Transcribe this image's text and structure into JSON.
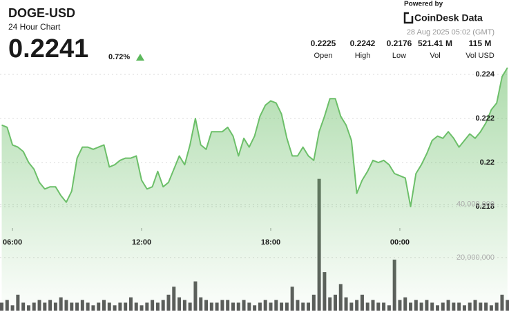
{
  "header": {
    "powered": "Powered by",
    "brand": "CoinDesk Data",
    "timestamp": "28 Aug 2025 05:02 (GMT)",
    "price": "0.2241",
    "change": "0.72%",
    "stats": [
      {
        "value": "0.2225",
        "label": "Open"
      },
      {
        "value": "0.2242",
        "label": "High"
      },
      {
        "value": "0.2176",
        "label": "Low"
      },
      {
        "value": "521.41 M",
        "label": "Vol"
      },
      {
        "value": "115 M",
        "label": "Vol USD"
      }
    ]
  },
  "chart_data": {
    "type": "line",
    "title": "DOGE-USD",
    "subtitle": "24 Hour Chart",
    "categories": [
      null,
      null,
      "06:00",
      null,
      null,
      null,
      null,
      null,
      null,
      null,
      null,
      null,
      null,
      null,
      null,
      null,
      null,
      null,
      null,
      null,
      null,
      null,
      null,
      null,
      null,
      null,
      "12:00",
      null,
      null,
      null,
      null,
      null,
      null,
      null,
      null,
      null,
      null,
      null,
      null,
      null,
      null,
      null,
      null,
      null,
      null,
      null,
      null,
      null,
      null,
      null,
      "18:00",
      null,
      null,
      null,
      null,
      null,
      null,
      null,
      null,
      null,
      null,
      null,
      null,
      null,
      null,
      null,
      null,
      null,
      null,
      null,
      null,
      null,
      null,
      null,
      "00:00",
      null,
      null,
      null,
      null,
      null,
      null,
      null,
      null,
      null,
      null,
      null,
      null,
      null,
      null,
      null,
      null,
      null,
      null,
      null,
      null
    ],
    "series": [
      {
        "color": "#6cbf69",
        "values": [
          0.2217,
          0.2216,
          0.2208,
          0.2207,
          0.2205,
          0.22,
          0.2197,
          0.2191,
          0.2188,
          0.2189,
          0.2189,
          0.2185,
          0.2182,
          0.2187,
          0.2202,
          0.2207,
          0.2207,
          0.2206,
          0.2207,
          0.2208,
          0.2198,
          0.2199,
          0.2201,
          0.2202,
          0.2202,
          0.2203,
          0.2192,
          0.2188,
          0.2189,
          0.2196,
          0.2189,
          0.2191,
          0.2197,
          0.2203,
          0.2199,
          0.2208,
          0.222,
          0.2208,
          0.2206,
          0.2214,
          0.2214,
          0.2214,
          0.2216,
          0.2212,
          0.2203,
          0.2211,
          0.2207,
          0.2212,
          0.2221,
          0.2226,
          0.2228,
          0.2227,
          0.2222,
          0.2211,
          0.2203,
          0.2203,
          0.2207,
          0.2203,
          0.2201,
          0.2214,
          0.2221,
          0.2229,
          0.2229,
          0.2221,
          0.2217,
          0.221,
          0.2186,
          0.2192,
          0.2196,
          0.2201,
          0.22,
          0.2201,
          0.2199,
          0.2195,
          0.2194,
          0.2193,
          0.218,
          0.2195,
          0.2199,
          0.2204,
          0.221,
          0.2212,
          0.2211,
          0.2214,
          0.2211,
          0.2207,
          0.221,
          0.2213,
          0.2211,
          0.2214,
          0.2218,
          0.2224,
          0.2227,
          0.2239,
          0.2243
        ]
      },
      {
        "color": "#5a5a5a",
        "axis": "y2",
        "type": "bar",
        "values": [
          3000000,
          4000000,
          2000000,
          6000000,
          3000000,
          2000000,
          3000000,
          4000000,
          3000000,
          4000000,
          3000000,
          5000000,
          4000000,
          3000000,
          3000000,
          4000000,
          3000000,
          2000000,
          3000000,
          4000000,
          3000000,
          2000000,
          3000000,
          3000000,
          5000000,
          3000000,
          2000000,
          3000000,
          4000000,
          3000000,
          4000000,
          6000000,
          9000000,
          5000000,
          4000000,
          3000000,
          11000000,
          5000000,
          4000000,
          3000000,
          3000000,
          4000000,
          4000000,
          3000000,
          3000000,
          4000000,
          3000000,
          2000000,
          3000000,
          4000000,
          3000000,
          4000000,
          3000000,
          3000000,
          9000000,
          4000000,
          3000000,
          3000000,
          6000000,
          49600000,
          14500000,
          5000000,
          6000000,
          10000000,
          5000000,
          3000000,
          4000000,
          6000000,
          3000000,
          4000000,
          3000000,
          3000000,
          2000000,
          19200000,
          4000000,
          5000000,
          3000000,
          4000000,
          3000000,
          4000000,
          3000000,
          2000000,
          3000000,
          4000000,
          3000000,
          3000000,
          2000000,
          3000000,
          4000000,
          3000000,
          3000000,
          2000000,
          3000000,
          6000000,
          4000000
        ]
      }
    ],
    "ylim": [
      0.21328,
      0.22425
    ],
    "yticks": [
      0.218,
      0.22,
      0.222,
      0.224
    ],
    "y2lim": [
      0,
      91000000
    ],
    "y2ticks": [
      {
        "value": 20000000,
        "label": "20,000,000"
      },
      {
        "value": 40000000,
        "label": "40,000,000"
      }
    ],
    "grid": true
  }
}
